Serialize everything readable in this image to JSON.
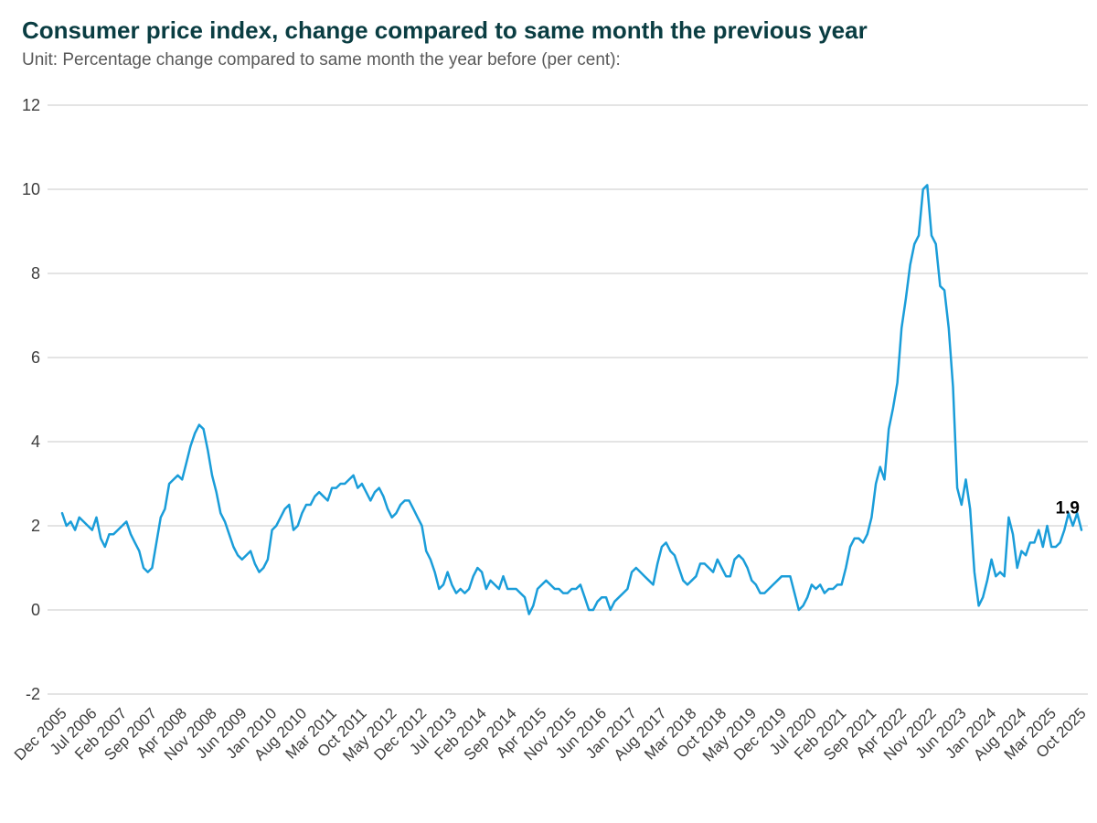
{
  "header": {
    "title": "Consumer price index, change compared to same month the previous year",
    "subtitle": "Unit: Percentage change compared to same month the year before (per cent):"
  },
  "colors": {
    "title": "#0a3d42",
    "subtitle": "#595959",
    "line": "#1a9dd9",
    "grid": "#c9c9c9",
    "tick_text": "#3d3d3d",
    "last_value_label": "#000000",
    "background": "#ffffff"
  },
  "chart_data": {
    "type": "line",
    "title": "Consumer price index, change compared to same month the previous year",
    "unit_label": "Percentage change compared to same month the year before (per cent)",
    "grid": "horizontal gridlines only",
    "legend": "none",
    "ylim": [
      -2,
      12
    ],
    "y_ticks": [
      -2,
      0,
      2,
      4,
      6,
      8,
      10,
      12
    ],
    "x_start": "Dec 2005",
    "x_end": "Oct 2025",
    "x_tick_interval_months": 7,
    "x_tick_labels": [
      "Dec 2005",
      "Jul 2006",
      "Feb 2007",
      "Sep 2007",
      "Apr 2008",
      "Nov 2008",
      "Jun 2009",
      "Jan 2010",
      "Aug 2010",
      "Mar 2011",
      "Oct 2011",
      "May 2012",
      "Dec 2012",
      "Jul 2013",
      "Feb 2014",
      "Sep 2014",
      "Apr 2015",
      "Nov 2015",
      "Jun 2016",
      "Jan 2017",
      "Aug 2017",
      "Mar 2018",
      "Oct 2018",
      "May 2019",
      "Dec 2019",
      "Jul 2020",
      "Feb 2021",
      "Sep 2021",
      "Apr 2022",
      "Nov 2022",
      "Jun 2023",
      "Jan 2024",
      "Aug 2024",
      "Mar 2025",
      "Oct 2025"
    ],
    "last_value_label": "1.9",
    "series": [
      {
        "name": "CPI, change vs same month previous year (per cent)",
        "start_month": "2005-12",
        "frequency": "monthly",
        "values": [
          2.3,
          2.0,
          2.1,
          1.9,
          2.2,
          2.1,
          2.0,
          1.9,
          2.2,
          1.7,
          1.5,
          1.8,
          1.8,
          1.9,
          2.0,
          2.1,
          1.8,
          1.6,
          1.4,
          1.0,
          0.9,
          1.0,
          1.6,
          2.2,
          2.4,
          3.0,
          3.1,
          3.2,
          3.1,
          3.5,
          3.9,
          4.2,
          4.4,
          4.3,
          3.8,
          3.2,
          2.8,
          2.3,
          2.1,
          1.8,
          1.5,
          1.3,
          1.2,
          1.3,
          1.4,
          1.1,
          0.9,
          1.0,
          1.2,
          1.9,
          2.0,
          2.2,
          2.4,
          2.5,
          1.9,
          2.0,
          2.3,
          2.5,
          2.5,
          2.7,
          2.8,
          2.7,
          2.6,
          2.9,
          2.9,
          3.0,
          3.0,
          3.1,
          3.2,
          2.9,
          3.0,
          2.8,
          2.6,
          2.8,
          2.9,
          2.7,
          2.4,
          2.2,
          2.3,
          2.5,
          2.6,
          2.6,
          2.4,
          2.2,
          2.0,
          1.4,
          1.2,
          0.9,
          0.5,
          0.6,
          0.9,
          0.6,
          0.4,
          0.5,
          0.4,
          0.5,
          0.8,
          1.0,
          0.9,
          0.5,
          0.7,
          0.6,
          0.5,
          0.8,
          0.5,
          0.5,
          0.5,
          0.4,
          0.3,
          -0.1,
          0.1,
          0.5,
          0.6,
          0.7,
          0.6,
          0.5,
          0.5,
          0.4,
          0.4,
          0.5,
          0.5,
          0.6,
          0.3,
          0.0,
          0.0,
          0.2,
          0.3,
          0.3,
          0.0,
          0.2,
          0.3,
          0.4,
          0.5,
          0.9,
          1.0,
          0.9,
          0.8,
          0.7,
          0.6,
          1.1,
          1.5,
          1.6,
          1.4,
          1.3,
          1.0,
          0.7,
          0.6,
          0.7,
          0.8,
          1.1,
          1.1,
          1.0,
          0.9,
          1.2,
          1.0,
          0.8,
          0.8,
          1.2,
          1.3,
          1.2,
          1.0,
          0.7,
          0.6,
          0.4,
          0.4,
          0.5,
          0.6,
          0.7,
          0.8,
          0.8,
          0.8,
          0.4,
          0.0,
          0.1,
          0.3,
          0.6,
          0.5,
          0.6,
          0.4,
          0.5,
          0.5,
          0.6,
          0.6,
          1.0,
          1.5,
          1.7,
          1.7,
          1.6,
          1.8,
          2.2,
          3.0,
          3.4,
          3.1,
          4.3,
          4.8,
          5.4,
          6.7,
          7.4,
          8.2,
          8.7,
          8.9,
          10.0,
          10.1,
          8.9,
          8.7,
          7.7,
          7.6,
          6.7,
          5.3,
          2.9,
          2.5,
          3.1,
          2.4,
          0.9,
          0.1,
          0.3,
          0.7,
          1.2,
          0.8,
          0.9,
          0.8,
          2.2,
          1.8,
          1.0,
          1.4,
          1.3,
          1.6,
          1.6,
          1.9,
          1.5,
          2.0,
          1.5,
          1.5,
          1.6,
          1.9,
          2.3,
          2.0,
          2.3,
          1.9
        ]
      }
    ]
  }
}
